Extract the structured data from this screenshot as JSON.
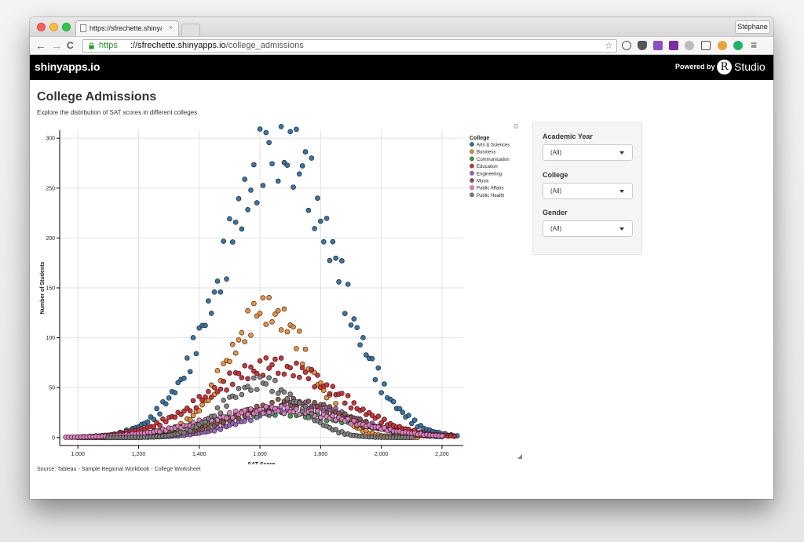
{
  "browser": {
    "tab_title": "https://sfrechette.shinyapp",
    "tab_close": "×",
    "profile_name": "Stéphane",
    "url_scheme": "https",
    "url_rest": "://sfrechette.shinyapps.io/college_admissions",
    "url_host": "://sfrechette.shinyapps.io",
    "url_path": "/college_admissions",
    "back": "←",
    "forward": "→",
    "reload": "C",
    "menu": "≡",
    "star": "☆"
  },
  "navbar": {
    "brand": "shinyapps.io",
    "powered_by": "Powered by",
    "r_logo": "R",
    "studio": "Studio"
  },
  "page": {
    "title": "College Admissions",
    "subtitle": "Explore the distribution of SAT scores in different colleges",
    "source": "Source: Tableau - Sample Regional Workbook - College Worksheet"
  },
  "filters": [
    {
      "label": "Academic Year",
      "value": "(All)"
    },
    {
      "label": "College",
      "value": "(All)"
    },
    {
      "label": "Gender",
      "value": "(All)"
    }
  ],
  "colors": {
    "Arts & Sciences": "#2c6fa3",
    "Business": "#f08a2d",
    "Communication": "#2e9a41",
    "Education": "#d0282e",
    "Engineering": "#9a62c0",
    "Music": "#8a5242",
    "Public Affairs": "#e77bc4",
    "Public Health": "#7d7d7d"
  },
  "chart_data": {
    "type": "scatter",
    "xlabel": "SAT Score",
    "ylabel": "Number of Students",
    "legend_title": "College",
    "legend_position": "top-right",
    "grid": true,
    "xlim": [
      940,
      2270
    ],
    "ylim": [
      -8,
      308
    ],
    "xticks": [
      1000,
      1200,
      1400,
      1600,
      1800,
      2000,
      2200
    ],
    "xtick_labels": [
      "1,000",
      "1,200",
      "1,400",
      "1,600",
      "1,800",
      "2,000",
      "2,200"
    ],
    "yticks": [
      0,
      50,
      100,
      150,
      200,
      250,
      300
    ],
    "ytick_labels": [
      "0",
      "50",
      "100",
      "150",
      "200",
      "250",
      "300"
    ],
    "series": [
      {
        "name": "Arts & Sciences",
        "peak": 1660,
        "height": 292,
        "spread": 182,
        "start": 980,
        "end": 2250,
        "step": 20
      },
      {
        "name": "Business",
        "peak": 1620,
        "height": 128,
        "spread": 130,
        "start": 1000,
        "end": 2120,
        "step": 20
      },
      {
        "name": "Communication",
        "peak": 1650,
        "height": 25,
        "spread": 240,
        "start": 1040,
        "end": 2150,
        "step": 20
      },
      {
        "name": "Education",
        "peak": 1640,
        "height": 72,
        "spread": 210,
        "start": 1000,
        "end": 2240,
        "step": 20
      },
      {
        "name": "Engineering",
        "peak": 1730,
        "height": 32,
        "spread": 170,
        "start": 1080,
        "end": 2160,
        "step": 20
      },
      {
        "name": "Music",
        "peak": 1700,
        "height": 35,
        "spread": 180,
        "start": 1020,
        "end": 2200,
        "step": 20
      },
      {
        "name": "Public Affairs",
        "peak": 1650,
        "height": 28,
        "spread": 230,
        "start": 960,
        "end": 2200,
        "step": 20
      },
      {
        "name": "Public Health",
        "peak": 1600,
        "height": 55,
        "spread": 120,
        "start": 1100,
        "end": 2100,
        "step": 20
      }
    ]
  }
}
